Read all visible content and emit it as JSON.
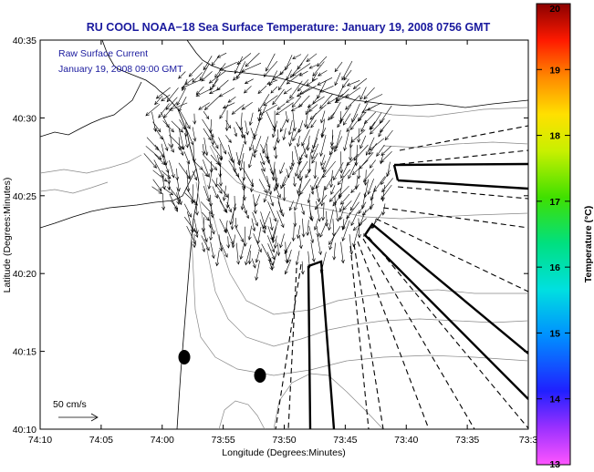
{
  "chart_data": {
    "type": "vector-field-map",
    "title": "RU COOL  NOAA−18  Sea Surface Temperature:  January 19, 2008 0756 GMT",
    "legend_lines": [
      "Raw Surface Current",
      "January 19, 2008 09:00 GMT"
    ],
    "xlabel": "Longitude (Degrees:Minutes)",
    "ylabel": "Latitude (Degrees:Minutes)",
    "x_tick_labels": [
      "74:10",
      "74:05",
      "74:00",
      "73:55",
      "73:50",
      "73:45",
      "73:40",
      "73:35",
      "73:3"
    ],
    "y_tick_labels": [
      "40:10",
      "40:15",
      "40:20",
      "40:25",
      "40:30",
      "40:35"
    ],
    "xlim_minutes_west": [
      4450,
      4410
    ],
    "ylim_minutes_north": [
      2410,
      2435
    ],
    "scale_label": "50 cm/s",
    "colorbar": {
      "label": "Temperature (°C)",
      "ticks": [
        "13",
        "14",
        "15",
        "16",
        "17",
        "18",
        "19",
        "20"
      ],
      "range": [
        13,
        20
      ]
    },
    "lines_color": "#000000",
    "title_color": "#1a1a9e"
  }
}
